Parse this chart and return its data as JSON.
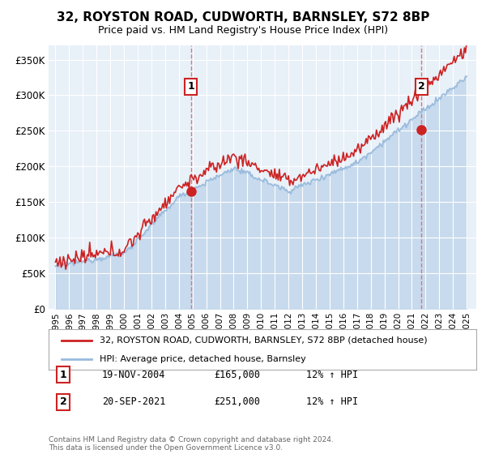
{
  "title": "32, ROYSTON ROAD, CUDWORTH, BARNSLEY, S72 8BP",
  "subtitle": "Price paid vs. HM Land Registry's House Price Index (HPI)",
  "ylabel_ticks": [
    "£0",
    "£50K",
    "£100K",
    "£150K",
    "£200K",
    "£250K",
    "£300K",
    "£350K"
  ],
  "ytick_vals": [
    0,
    50000,
    100000,
    150000,
    200000,
    250000,
    300000,
    350000
  ],
  "ylim": [
    0,
    370000
  ],
  "legend_line1": "32, ROYSTON ROAD, CUDWORTH, BARNSLEY, S72 8BP (detached house)",
  "legend_line2": "HPI: Average price, detached house, Barnsley",
  "marker1_date": "19-NOV-2004",
  "marker1_price": "£165,000",
  "marker1_hpi": "12% ↑ HPI",
  "marker2_date": "20-SEP-2021",
  "marker2_price": "£251,000",
  "marker2_hpi": "12% ↑ HPI",
  "footer": "Contains HM Land Registry data © Crown copyright and database right 2024.\nThis data is licensed under the Open Government Licence v3.0.",
  "line_color_red": "#cc2222",
  "line_color_blue": "#99bbdd",
  "vline_color": "#dd7777",
  "background_color": "#ffffff",
  "plot_bg_color": "#e8f0f8",
  "grid_color": "#ffffff"
}
